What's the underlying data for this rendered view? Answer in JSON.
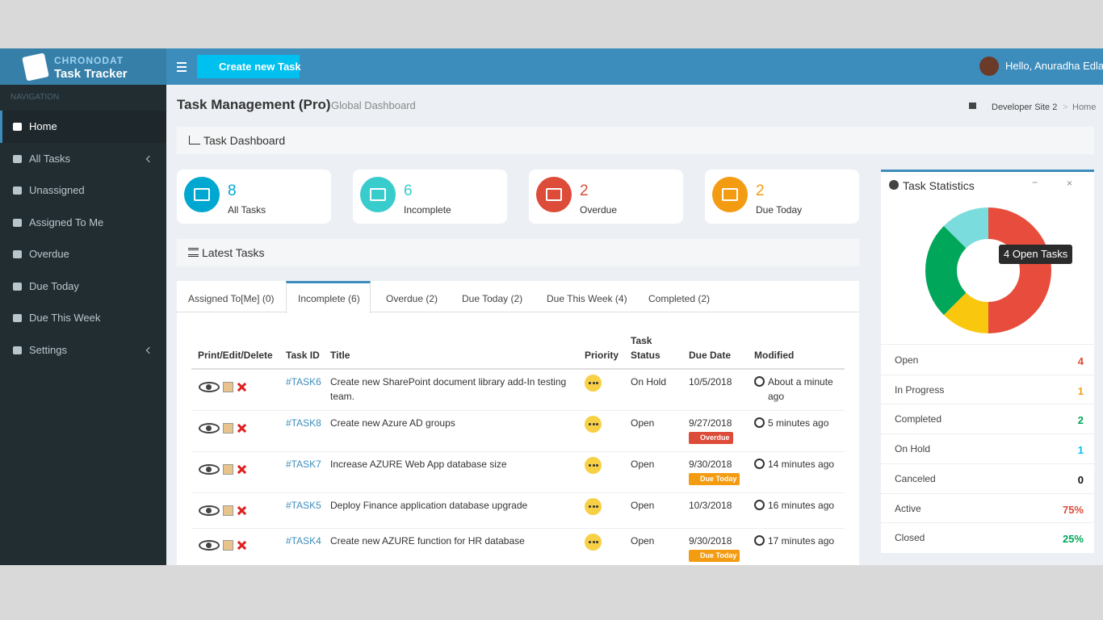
{
  "brand": {
    "line1": "CHRONODAT",
    "line2": "Task Tracker"
  },
  "topbar": {
    "button": "Create new Task",
    "greeting": "Hello, Anuradha Edla"
  },
  "sidebar": {
    "heading": "NAVIGATION",
    "items": [
      "Home",
      "All Tasks",
      "Unassigned",
      "Assigned To Me",
      "Overdue",
      "Due Today",
      "Due This Week",
      "Settings"
    ]
  },
  "page": {
    "title": "Task Management (Pro)",
    "subtitle": "Global Dashboard",
    "breadcrumb": [
      "Developer Site 2",
      "Home"
    ]
  },
  "dashboard_title": "Task Dashboard",
  "cards": [
    {
      "value": 8,
      "label": "All Tasks",
      "color": "#00a7d0"
    },
    {
      "value": 6,
      "label": "Incomplete",
      "color": "#39cccc"
    },
    {
      "value": 2,
      "label": "Overdue",
      "color": "#dd4b39"
    },
    {
      "value": 2,
      "label": "Due Today",
      "color": "#f39c12"
    }
  ],
  "latest_title": "Latest Tasks",
  "tabs": [
    "Assigned To[Me] (0)",
    "Incomplete (6)",
    "Overdue (2)",
    "Due Today (2)",
    "Due This Week (4)",
    "Completed (2)"
  ],
  "table": {
    "headers": [
      "Print/Edit/Delete",
      "Task ID",
      "Title",
      "Priority",
      "Task Status",
      "Due Date",
      "Modified"
    ],
    "rows": [
      {
        "id": "#TASK6",
        "title": "Create new SharePoint document library add-In testing team.",
        "status": "On Hold",
        "due": "10/5/2018",
        "modified": "About a minute ago"
      },
      {
        "id": "#TASK8",
        "title": "Create new Azure AD groups",
        "status": "Open",
        "due": "9/27/2018",
        "badge": "Overdue",
        "modified": "5 minutes ago"
      },
      {
        "id": "#TASK7",
        "title": "Increase AZURE Web App database size",
        "status": "Open",
        "due": "9/30/2018",
        "badge": "Due Today",
        "modified": "14 minutes ago"
      },
      {
        "id": "#TASK5",
        "title": "Deploy Finance application database upgrade",
        "status": "Open",
        "due": "10/3/2018",
        "modified": "16 minutes ago"
      },
      {
        "id": "#TASK4",
        "title": "Create new AZURE function for HR database",
        "status": "Open",
        "due": "9/30/2018",
        "badge": "Due Today",
        "modified": "17 minutes ago"
      }
    ]
  },
  "stats": {
    "title": "Task Statistics",
    "tooltip": "4 Open Tasks",
    "rows": [
      {
        "label": "Open",
        "value": 4,
        "color": "#dd4b39",
        "segment_color": "#e74c3c"
      },
      {
        "label": "In Progress",
        "value": 1,
        "color": "#f39c12",
        "segment_color": "#f9c80e"
      },
      {
        "label": "Completed",
        "value": 2,
        "color": "#00a65a",
        "segment_color": "#00a65a"
      },
      {
        "label": "On Hold",
        "value": 1,
        "color": "#00c0ef",
        "segment_color": "#7adcdc"
      },
      {
        "label": "Canceled",
        "value": 0,
        "color": "#111111",
        "segment_color": "#444444"
      }
    ],
    "summary": [
      {
        "label": "Active",
        "value": "75%",
        "color": "#dd4b39"
      },
      {
        "label": "Closed",
        "value": "25%",
        "color": "#00a65a"
      }
    ]
  }
}
